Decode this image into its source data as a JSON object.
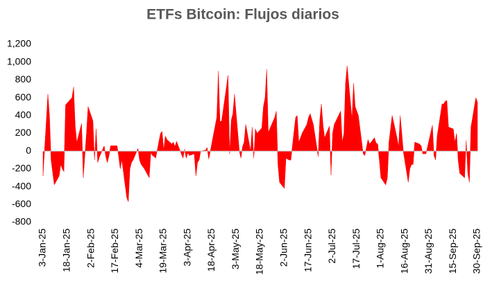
{
  "chart_data": {
    "type": "area",
    "title": "ETFs Bitcoin: Flujos diarios",
    "color": "#ff0000",
    "xlim": [
      "2025-01-03",
      "2025-09-30"
    ],
    "xticks": [
      {
        "value": "2025-01-03",
        "label": "3-Jan-25"
      },
      {
        "value": "2025-01-18",
        "label": "18-Jan-25"
      },
      {
        "value": "2025-02-02",
        "label": "2-Feb-25"
      },
      {
        "value": "2025-02-17",
        "label": "17-Feb-25"
      },
      {
        "value": "2025-03-04",
        "label": "4-Mar-25"
      },
      {
        "value": "2025-03-19",
        "label": "19-Mar-25"
      },
      {
        "value": "2025-04-03",
        "label": "3-Apr-25"
      },
      {
        "value": "2025-04-18",
        "label": "18-Apr-25"
      },
      {
        "value": "2025-05-03",
        "label": "3-May-25"
      },
      {
        "value": "2025-05-18",
        "label": "18-May-25"
      },
      {
        "value": "2025-06-02",
        "label": "2-Jun-25"
      },
      {
        "value": "2025-06-17",
        "label": "17-Jun-25"
      },
      {
        "value": "2025-07-02",
        "label": "2-Jul-25"
      },
      {
        "value": "2025-07-17",
        "label": "17-Jul-25"
      },
      {
        "value": "2025-08-01",
        "label": "1-Aug-25"
      },
      {
        "value": "2025-08-16",
        "label": "16-Aug-25"
      },
      {
        "value": "2025-08-31",
        "label": "31-Aug-25"
      },
      {
        "value": "2025-09-15",
        "label": "15-Sep-25"
      },
      {
        "value": "2025-09-30",
        "label": "30-Sep-25"
      }
    ],
    "ylim": [
      -800,
      1200
    ],
    "yticks": [
      -800,
      -600,
      -400,
      -200,
      0,
      200,
      400,
      600,
      800,
      {
        "value": 1000,
        "label": "1,000"
      },
      {
        "value": 1200,
        "label": "1,200"
      }
    ],
    "x": [
      "2025-01-03",
      "2025-01-06",
      "2025-01-07",
      "2025-01-08",
      "2025-01-10",
      "2025-01-13",
      "2025-01-14",
      "2025-01-15",
      "2025-01-16",
      "2025-01-17",
      "2025-01-21",
      "2025-01-22",
      "2025-01-23",
      "2025-01-24",
      "2025-01-27",
      "2025-01-28",
      "2025-01-30",
      "2025-01-31",
      "2025-02-03",
      "2025-02-04",
      "2025-02-05",
      "2025-02-06",
      "2025-02-07",
      "2025-02-10",
      "2025-02-11",
      "2025-02-12",
      "2025-02-13",
      "2025-02-14",
      "2025-02-18",
      "2025-02-19",
      "2025-02-20",
      "2025-02-21",
      "2025-02-24",
      "2025-02-25",
      "2025-02-26",
      "2025-02-27",
      "2025-02-28",
      "2025-03-03",
      "2025-03-04",
      "2025-03-05",
      "2025-03-07",
      "2025-03-10",
      "2025-03-11",
      "2025-03-12",
      "2025-03-13",
      "2025-03-14",
      "2025-03-17",
      "2025-03-18",
      "2025-03-19",
      "2025-03-20",
      "2025-03-21",
      "2025-03-24",
      "2025-03-25",
      "2025-03-26",
      "2025-03-27",
      "2025-03-31",
      "2025-04-01",
      "2025-04-02",
      "2025-04-03",
      "2025-04-04",
      "2025-04-07",
      "2025-04-08",
      "2025-04-09",
      "2025-04-10",
      "2025-04-11",
      "2025-04-14",
      "2025-04-15",
      "2025-04-16",
      "2025-04-17",
      "2025-04-21",
      "2025-04-22",
      "2025-04-23",
      "2025-04-24",
      "2025-04-28",
      "2025-04-29",
      "2025-04-30",
      "2025-05-01",
      "2025-05-02",
      "2025-05-05",
      "2025-05-06",
      "2025-05-07",
      "2025-05-08",
      "2025-05-09",
      "2025-05-12",
      "2025-05-13",
      "2025-05-14",
      "2025-05-15",
      "2025-05-16",
      "2025-05-19",
      "2025-05-20",
      "2025-05-21",
      "2025-05-22",
      "2025-05-23",
      "2025-05-27",
      "2025-05-28",
      "2025-05-29",
      "2025-05-30",
      "2025-06-02",
      "2025-06-03",
      "2025-06-04",
      "2025-06-05",
      "2025-06-06",
      "2025-06-09",
      "2025-06-10",
      "2025-06-11",
      "2025-06-12",
      "2025-06-13",
      "2025-06-16",
      "2025-06-17",
      "2025-06-18",
      "2025-06-20",
      "2025-06-23",
      "2025-06-24",
      "2025-06-25",
      "2025-06-26",
      "2025-06-27",
      "2025-06-30",
      "2025-07-01",
      "2025-07-02",
      "2025-07-03",
      "2025-07-07",
      "2025-07-08",
      "2025-07-09",
      "2025-07-10",
      "2025-07-11",
      "2025-07-14",
      "2025-07-15",
      "2025-07-16",
      "2025-07-17",
      "2025-07-18",
      "2025-07-21",
      "2025-07-22",
      "2025-07-24",
      "2025-07-25",
      "2025-07-28",
      "2025-07-29",
      "2025-07-30",
      "2025-07-31",
      "2025-08-01",
      "2025-08-04",
      "2025-08-05",
      "2025-08-06",
      "2025-08-07",
      "2025-08-08",
      "2025-08-11",
      "2025-08-12",
      "2025-08-13",
      "2025-08-14",
      "2025-08-15",
      "2025-08-18",
      "2025-08-19",
      "2025-08-20",
      "2025-08-21",
      "2025-08-22",
      "2025-08-25",
      "2025-08-26",
      "2025-08-27",
      "2025-08-29",
      "2025-09-02",
      "2025-09-03",
      "2025-09-04",
      "2025-09-05",
      "2025-09-08",
      "2025-09-09",
      "2025-09-10",
      "2025-09-11",
      "2025-09-12",
      "2025-09-15",
      "2025-09-16",
      "2025-09-17",
      "2025-09-18",
      "2025-09-19",
      "2025-09-22",
      "2025-09-23",
      "2025-09-24",
      "2025-09-25",
      "2025-09-26",
      "2025-09-29",
      "2025-09-30"
    ],
    "values": [
      -280,
      640,
      400,
      -100,
      -380,
      -280,
      -150,
      -200,
      -230,
      520,
      600,
      720,
      280,
      100,
      310,
      -300,
      200,
      500,
      340,
      -100,
      250,
      -130,
      -70,
      60,
      -60,
      -130,
      -50,
      60,
      60,
      -60,
      -200,
      -100,
      -520,
      -570,
      -200,
      -130,
      -100,
      30,
      -100,
      -150,
      -200,
      -300,
      -20,
      -50,
      -60,
      -80,
      200,
      220,
      10,
      170,
      130,
      80,
      100,
      50,
      110,
      -80,
      20,
      -80,
      -20,
      -50,
      -30,
      -280,
      -130,
      -100,
      0,
      10,
      40,
      -90,
      0,
      380,
      900,
      330,
      340,
      850,
      -30,
      350,
      420,
      640,
      0,
      -80,
      50,
      100,
      300,
      0,
      270,
      -80,
      250,
      200,
      260,
      500,
      600,
      920,
      210,
      380,
      450,
      -150,
      -350,
      -420,
      -80,
      -90,
      -100,
      -100,
      380,
      400,
      100,
      150,
      200,
      300,
      380,
      420,
      300,
      -60,
      350,
      530,
      300,
      150,
      280,
      -270,
      200,
      300,
      450,
      100,
      200,
      760,
      960,
      360,
      760,
      500,
      450,
      400,
      -30,
      -50,
      130,
      80,
      150,
      90,
      80,
      -100,
      -300,
      -380,
      -300,
      100,
      250,
      400,
      150,
      50,
      400,
      200,
      -10,
      -350,
      -200,
      -150,
      -150,
      100,
      80,
      60,
      -30,
      -30,
      290,
      -50,
      -100,
      170,
      530,
      530,
      560,
      570,
      270,
      250,
      100,
      200,
      -100,
      -250,
      -300,
      120,
      -250,
      -350,
      270,
      600,
      550
    ]
  }
}
